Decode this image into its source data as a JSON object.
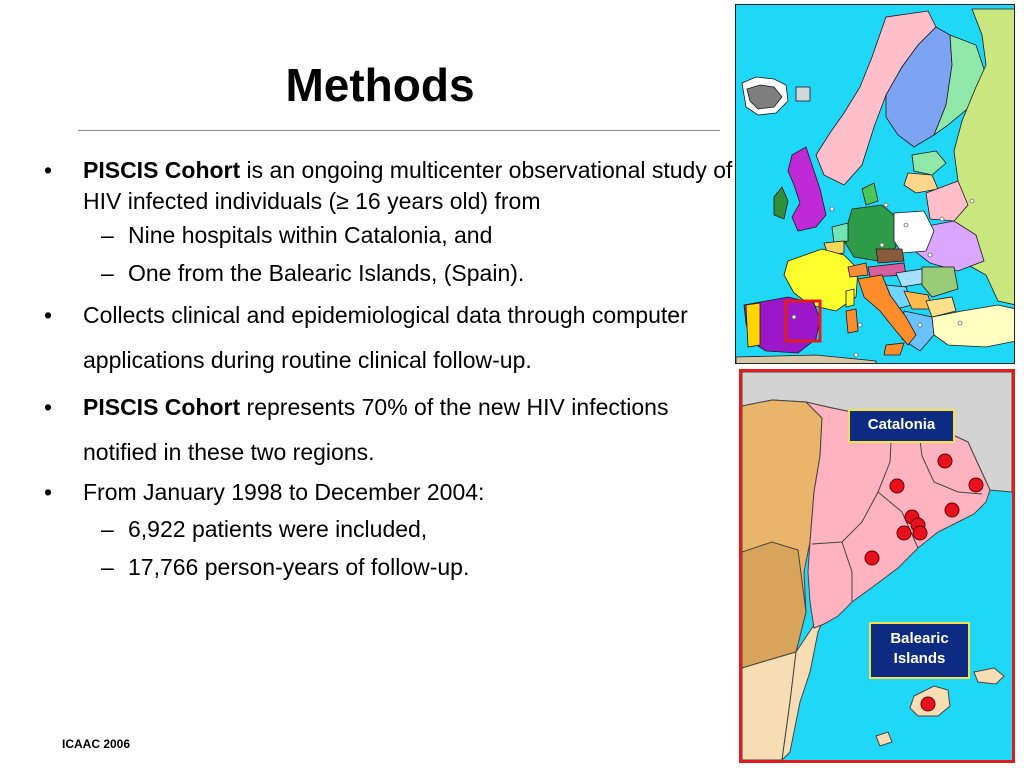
{
  "slide": {
    "title": "Methods",
    "footer": "ICAAC 2006"
  },
  "bullets": {
    "b1": {
      "marker": "•",
      "bold": "PISCIS Cohort",
      "text": " is an ongoing multicenter observational study of HIV infected individuals (≥ 16 years old) from"
    },
    "b1_sub": [
      {
        "marker": "–",
        "text": "Nine hospitals within Catalonia, and"
      },
      {
        "marker": "–",
        "text": "One from the Balearic Islands, (Spain)."
      }
    ],
    "b2": {
      "marker": "•",
      "text": "Collects clinical and epidemiological data through computer applications during routine clinical follow-up."
    },
    "b3": {
      "marker": "•",
      "bold": "PISCIS Cohort",
      "text": " represents 70% of the new HIV infections notified in these two regions."
    },
    "b4": {
      "marker": "•",
      "text": "From January 1998 to December 2004:"
    },
    "b4_sub": [
      {
        "marker": "–",
        "text": "6,922 patients were included,"
      },
      {
        "marker": "–",
        "text": "17,766 person-years of follow-up."
      }
    ]
  },
  "maps": {
    "europe": {
      "highlight_color": "#e21c1c",
      "sea_color": "#1fd8f7"
    },
    "catalonia": {
      "label_catalonia": "Catalonia",
      "label_balearic": "Balearic Islands",
      "hospital_marker_color": "#e8101c",
      "hospital_count": 10
    }
  }
}
